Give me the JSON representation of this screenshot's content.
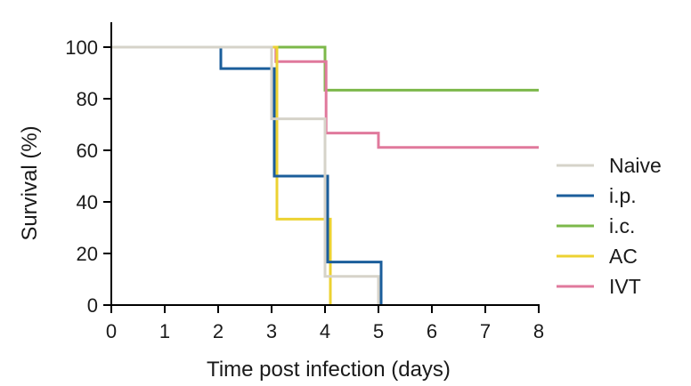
{
  "chart_data": {
    "type": "line",
    "step": true,
    "title": "",
    "xlabel": "Time post infection (days)",
    "ylabel": "Survival (%)",
    "xlim": [
      0,
      8
    ],
    "ylim": [
      0,
      100
    ],
    "xticks": [
      0,
      1,
      2,
      3,
      4,
      5,
      6,
      7,
      8
    ],
    "yticks": [
      0,
      20,
      40,
      60,
      80,
      100
    ],
    "grid": false,
    "legend_position": "right",
    "series": [
      {
        "name": "Naive",
        "color": "#d6d3c9",
        "points": [
          [
            0,
            100
          ],
          [
            3,
            100
          ],
          [
            3,
            72.2
          ],
          [
            4,
            72.2
          ],
          [
            4,
            11.1
          ],
          [
            5,
            11.1
          ],
          [
            5,
            0
          ]
        ]
      },
      {
        "name": "i.p.",
        "color": "#1b5e9b",
        "points": [
          [
            0,
            100
          ],
          [
            2.05,
            100
          ],
          [
            2.05,
            91.7
          ],
          [
            3.05,
            91.7
          ],
          [
            3.05,
            50
          ],
          [
            4.05,
            50
          ],
          [
            4.05,
            16.7
          ],
          [
            5.05,
            16.7
          ],
          [
            5.05,
            0
          ]
        ]
      },
      {
        "name": "i.c.",
        "color": "#7cb84a",
        "points": [
          [
            0,
            100
          ],
          [
            4,
            100
          ],
          [
            4,
            83.3
          ],
          [
            8,
            83.3
          ]
        ]
      },
      {
        "name": "AC",
        "color": "#ecd232",
        "points": [
          [
            0,
            100
          ],
          [
            3.1,
            100
          ],
          [
            3.1,
            33.3
          ],
          [
            4.1,
            33.3
          ],
          [
            4.1,
            0
          ]
        ]
      },
      {
        "name": "IVT",
        "color": "#e0799c",
        "points": [
          [
            0,
            100
          ],
          [
            3.08,
            100
          ],
          [
            3.08,
            94.4
          ],
          [
            4.02,
            94.4
          ],
          [
            4.02,
            66.7
          ],
          [
            5,
            66.7
          ],
          [
            5,
            61.1
          ],
          [
            8,
            61.1
          ]
        ]
      }
    ]
  }
}
